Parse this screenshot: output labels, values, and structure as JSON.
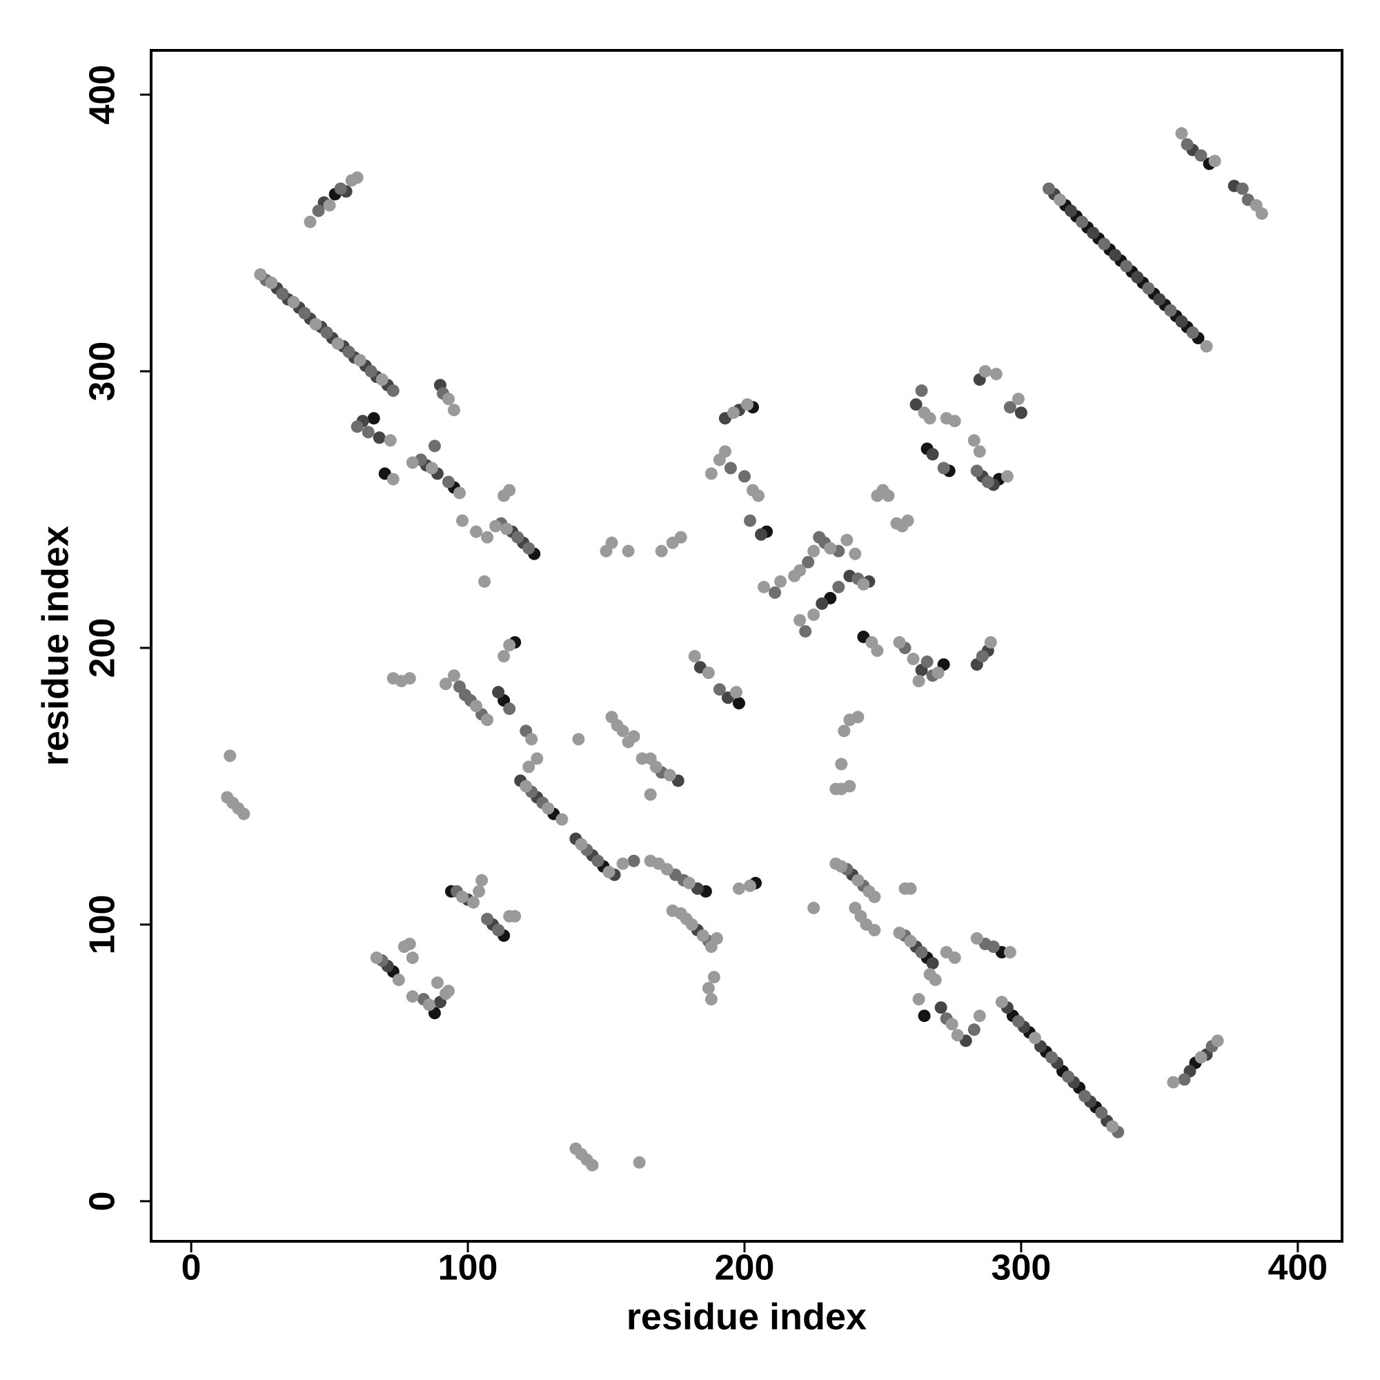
{
  "chart_data": {
    "type": "scatter",
    "x_label": "residue index",
    "y_label": "residue index",
    "xlim": [
      -14.5,
      416
    ],
    "ylim": [
      -14.5,
      416
    ],
    "xticks": [
      0,
      100,
      200,
      300,
      400
    ],
    "yticks": [
      0,
      100,
      200,
      300,
      400
    ],
    "series": [
      {
        "color": "#141414",
        "x": [
          316,
          320,
          324,
          328,
          332,
          336,
          340,
          344,
          348,
          352,
          356,
          360,
          364,
          297,
          303,
          309,
          315,
          321,
          327,
          52,
          66,
          70,
          95,
          124,
          208,
          231,
          243,
          266,
          274,
          292,
          368,
          117,
          113,
          131,
          149,
          186,
          198,
          204,
          266,
          265,
          293,
          363,
          73,
          88,
          94,
          113,
          272,
          203
        ],
        "y": [
          360,
          356,
          352,
          348,
          344,
          340,
          336,
          332,
          328,
          324,
          320,
          316,
          312,
          67,
          61,
          54,
          47,
          41,
          34,
          364,
          283,
          263,
          258,
          234,
          242,
          218,
          204,
          272,
          264,
          261,
          375,
          202,
          181,
          140,
          121,
          112,
          180,
          115,
          88,
          67,
          90,
          50,
          83,
          68,
          112,
          96,
          194,
          287
        ]
      },
      {
        "color": "#454545",
        "x": [
          31,
          35,
          39,
          43,
          47,
          51,
          55,
          59,
          63,
          67,
          71,
          312,
          318,
          326,
          334,
          342,
          350,
          358,
          295,
          301,
          307,
          313,
          319,
          325,
          331,
          48,
          56,
          62,
          68,
          85,
          89,
          90,
          116,
          120,
          193,
          198,
          206,
          228,
          238,
          245,
          262,
          268,
          286,
          290,
          284,
          362,
          377,
          111,
          119,
          125,
          139,
          145,
          153,
          176,
          183,
          183,
          194,
          239,
          262,
          268,
          271,
          280,
          361,
          367,
          71,
          90,
          100,
          109,
          184,
          264,
          288,
          300,
          285
        ],
        "y": [
          330,
          326,
          323,
          319,
          316,
          312,
          309,
          305,
          302,
          298,
          295,
          364,
          358,
          350,
          342,
          334,
          326,
          318,
          70,
          63,
          56,
          50,
          43,
          36,
          29,
          361,
          365,
          282,
          276,
          266,
          263,
          295,
          242,
          238,
          283,
          286,
          241,
          216,
          226,
          224,
          288,
          270,
          262,
          259,
          194,
          380,
          367,
          184,
          152,
          146,
          131,
          125,
          118,
          152,
          113,
          98,
          182,
          118,
          92,
          86,
          70,
          58,
          47,
          53,
          85,
          72,
          109,
          100,
          193,
          192,
          199,
          285,
          297
        ]
      },
      {
        "color": "#6e6e6e",
        "x": [
          27,
          33,
          41,
          49,
          57,
          65,
          73,
          310,
          322,
          330,
          338,
          346,
          354,
          362,
          299,
          311,
          317,
          323,
          329,
          335,
          46,
          54,
          60,
          64,
          83,
          88,
          91,
          93,
          112,
          118,
          122,
          195,
          200,
          202,
          211,
          223,
          229,
          234,
          222,
          234,
          241,
          264,
          272,
          284,
          288,
          296,
          360,
          365,
          380,
          382,
          97,
          101,
          105,
          115,
          121,
          123,
          127,
          143,
          147,
          160,
          170,
          175,
          178,
          187,
          191,
          237,
          243,
          258,
          264,
          273,
          283,
          287,
          290,
          369,
          359,
          69,
          84,
          96,
          107,
          111,
          99,
          227,
          266,
          268,
          258,
          286
        ],
        "y": [
          333,
          328,
          321,
          314,
          307,
          300,
          293,
          366,
          354,
          346,
          338,
          330,
          322,
          314,
          65,
          52,
          45,
          38,
          32,
          25,
          358,
          366,
          280,
          278,
          268,
          273,
          292,
          260,
          245,
          240,
          236,
          265,
          262,
          246,
          220,
          231,
          238,
          235,
          206,
          222,
          225,
          293,
          265,
          264,
          260,
          287,
          382,
          378,
          366,
          362,
          186,
          181,
          176,
          178,
          170,
          148,
          144,
          127,
          123,
          123,
          155,
          118,
          116,
          94,
          185,
          120,
          114,
          96,
          90,
          66,
          62,
          93,
          92,
          56,
          44,
          87,
          73,
          112,
          102,
          98,
          183,
          240,
          195,
          190,
          200,
          197
        ]
      },
      {
        "color": "#9a9a9a",
        "x": [
          25,
          29,
          37,
          45,
          53,
          61,
          69,
          314,
          367,
          293,
          305,
          333,
          43,
          50,
          58,
          60,
          72,
          73,
          80,
          87,
          97,
          93,
          95,
          98,
          103,
          107,
          110,
          114,
          113,
          115,
          106,
          150,
          152,
          158,
          170,
          174,
          177,
          188,
          191,
          193,
          203,
          205,
          196,
          201,
          207,
          213,
          218,
          220,
          225,
          237,
          240,
          220,
          225,
          243,
          246,
          248,
          248,
          250,
          252,
          255,
          257,
          259,
          265,
          267,
          273,
          276,
          283,
          285,
          287,
          291,
          295,
          299,
          256,
          261,
          263,
          270,
          289,
          358,
          370,
          385,
          387,
          14,
          13,
          15,
          17,
          19,
          73,
          76,
          79,
          92,
          95,
          103,
          107,
          123,
          113,
          115,
          121,
          129,
          134,
          122,
          125,
          141,
          151,
          156,
          140,
          152,
          154,
          156,
          158,
          160,
          163,
          166,
          168,
          173,
          166,
          166,
          169,
          172,
          180,
          174,
          177,
          179,
          181,
          185,
          190,
          188,
          187,
          189,
          188,
          182,
          187,
          197,
          198,
          202,
          225,
          233,
          235,
          241,
          245,
          247,
          240,
          242,
          244,
          247,
          233,
          235,
          238,
          235,
          236,
          238,
          241,
          258,
          260,
          256,
          260,
          267,
          269,
          273,
          276,
          263,
          275,
          277,
          285,
          284,
          296,
          355,
          365,
          371,
          67,
          75,
          77,
          79,
          80,
          80,
          86,
          92,
          89,
          93,
          98,
          102,
          104,
          105,
          115,
          117,
          139,
          141,
          143,
          145,
          162,
          231
        ],
        "y": [
          335,
          332,
          325,
          317,
          310,
          304,
          297,
          362,
          309,
          72,
          59,
          27,
          354,
          360,
          369,
          370,
          275,
          261,
          267,
          265,
          256,
          290,
          286,
          246,
          242,
          240,
          244,
          243,
          255,
          257,
          224,
          235,
          238,
          235,
          235,
          238,
          240,
          263,
          268,
          271,
          257,
          255,
          285,
          288,
          222,
          224,
          226,
          228,
          235,
          239,
          234,
          210,
          212,
          223,
          202,
          199,
          255,
          257,
          255,
          245,
          244,
          246,
          285,
          283,
          283,
          282,
          275,
          271,
          300,
          299,
          262,
          290,
          202,
          196,
          188,
          191,
          202,
          386,
          376,
          360,
          357,
          161,
          146,
          144,
          142,
          140,
          189,
          188,
          189,
          187,
          190,
          179,
          174,
          167,
          197,
          201,
          150,
          142,
          138,
          157,
          160,
          129,
          119,
          122,
          167,
          175,
          172,
          170,
          166,
          168,
          160,
          160,
          157,
          154,
          147,
          123,
          122,
          120,
          115,
          105,
          104,
          102,
          100,
          96,
          95,
          92,
          77,
          81,
          73,
          197,
          191,
          184,
          113,
          114,
          106,
          122,
          121,
          116,
          112,
          110,
          106,
          103,
          100,
          98,
          149,
          149,
          150,
          158,
          170,
          174,
          175,
          113,
          113,
          97,
          94,
          82,
          80,
          90,
          88,
          73,
          64,
          60,
          67,
          95,
          90,
          43,
          52,
          58,
          88,
          80,
          92,
          93,
          88,
          74,
          71,
          75,
          79,
          76,
          110,
          108,
          112,
          116,
          103,
          103,
          19,
          17,
          15,
          13,
          14,
          236
        ]
      }
    ]
  }
}
